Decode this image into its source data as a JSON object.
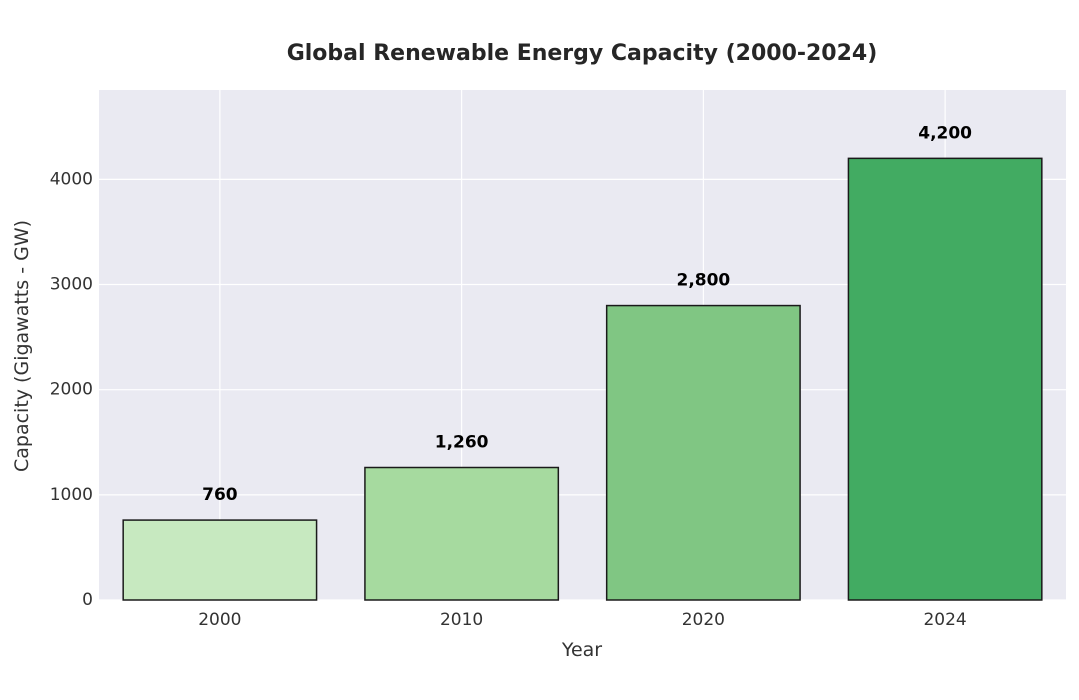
{
  "chart_data": {
    "type": "bar",
    "title": "Global Renewable Energy Capacity (2000-2024)",
    "xlabel": "Year",
    "ylabel": "Capacity (Gigawatts - GW)",
    "categories": [
      "2000",
      "2010",
      "2020",
      "2024"
    ],
    "values": [
      760,
      1260,
      2800,
      4200
    ],
    "data_labels": [
      "760",
      "1,260",
      "2,800",
      "4,200"
    ],
    "yticks": [
      0,
      1000,
      2000,
      3000,
      4000
    ],
    "ylim": [
      0,
      4850
    ],
    "grid": true,
    "legend": "none",
    "colors": {
      "background": "#eaeaf2",
      "grid": "#ffffff",
      "bar_edge": "#1a1a1a",
      "bars": [
        "#c7e9c0",
        "#a6da9f",
        "#80c683",
        "#42ab62"
      ]
    }
  }
}
